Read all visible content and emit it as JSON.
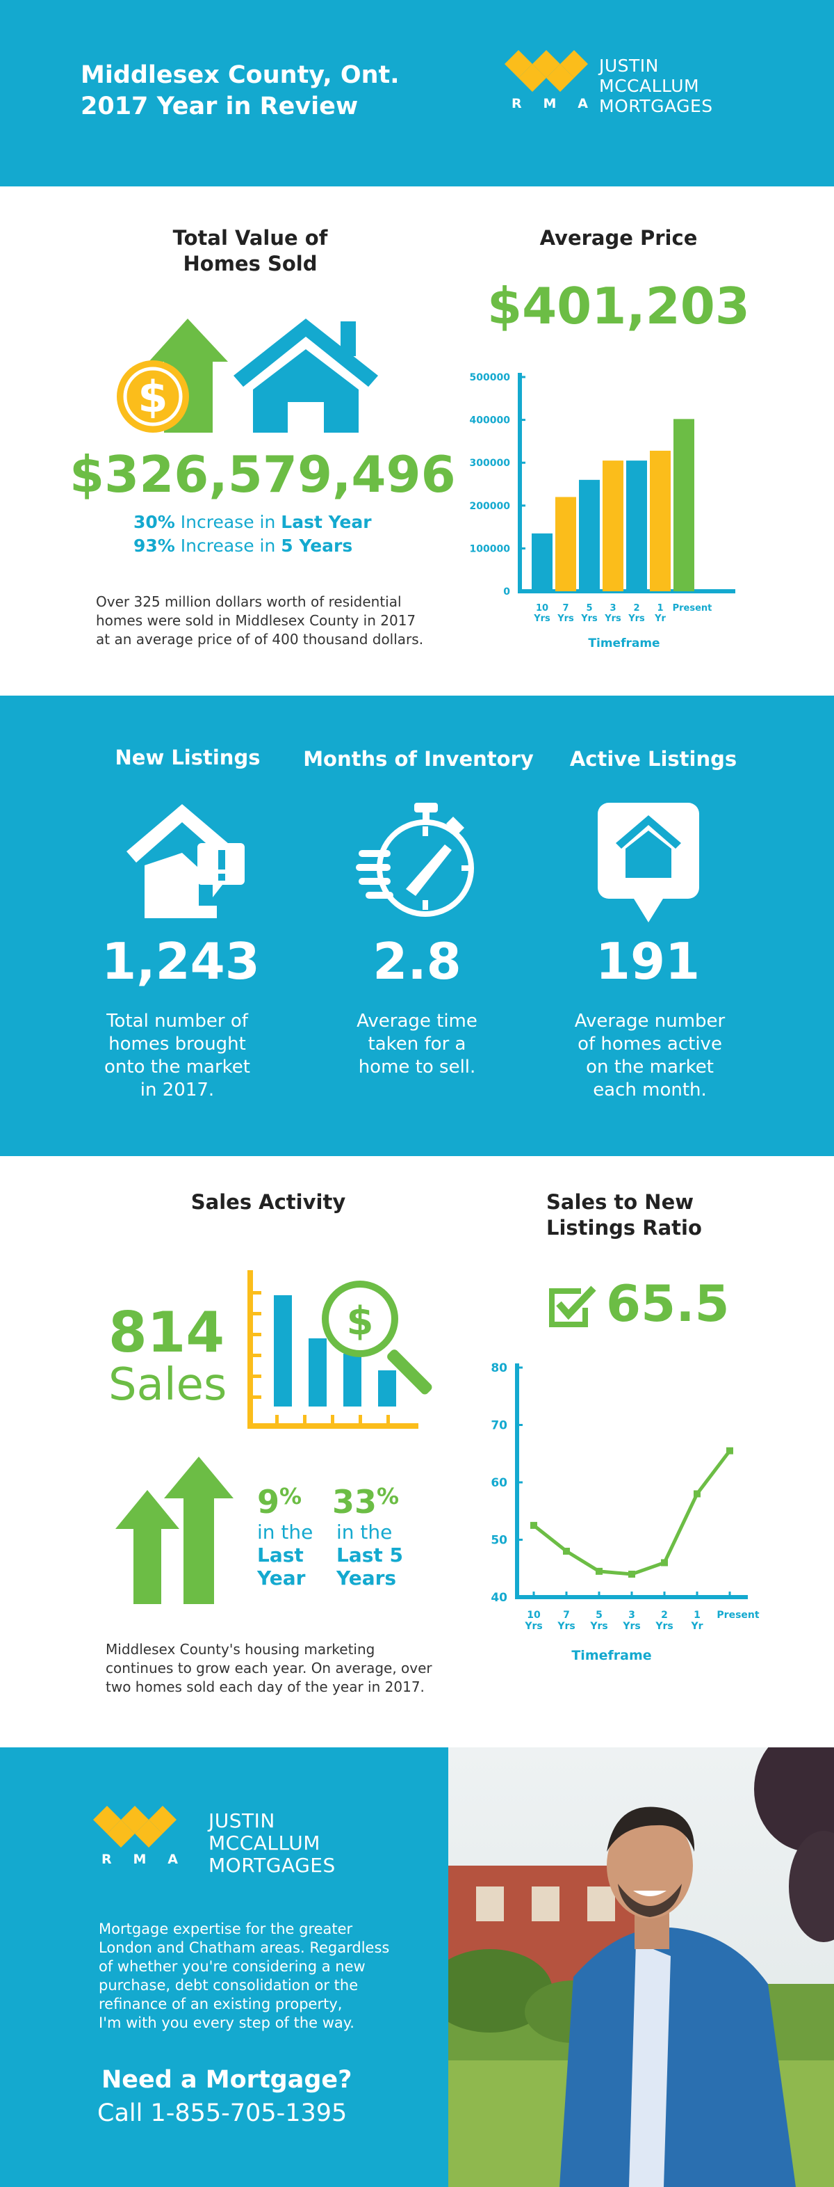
{
  "header": {
    "title_line1": "Middlesex County, Ont.",
    "title_line2": "2017 Year in Review",
    "logo_line1": "JUSTIN",
    "logo_line2": "MCCALLUM",
    "logo_line3": "MORTGAGES",
    "logo_letters": [
      "R",
      "M",
      "A"
    ]
  },
  "total_value": {
    "title_line1": "Total Value of",
    "title_line2": "Homes Sold",
    "amount": "$326,579,496",
    "inc1_pct": "30%",
    "inc1_mid": " Increase in ",
    "inc1_span": "Last Year",
    "inc2_pct": "93%",
    "inc2_mid": " Increase in ",
    "inc2_span": "5 Years",
    "desc_line1": "Over 325 million dollars worth of residential",
    "desc_line2": "homes were sold in Middlesex County in 2017",
    "desc_line3": "at an average price of of 400 thousand dollars."
  },
  "average_price": {
    "title": "Average Price",
    "amount": "$401,203"
  },
  "band": {
    "new_listings_title": "New Listings",
    "new_listings_value": "1,243",
    "new_listings_desc": [
      "Total number of",
      "homes brought",
      "onto the market",
      "in 2017."
    ],
    "months_title": "Months of Inventory",
    "months_value": "2.8",
    "months_desc": [
      "Average time",
      "taken for a",
      "home to sell."
    ],
    "active_title": "Active Listings",
    "active_value": "191",
    "active_desc": [
      "Average number",
      "of homes active",
      "on the market",
      "each month."
    ]
  },
  "sales": {
    "title": "Sales Activity",
    "count": "814",
    "word": "Sales",
    "pct1_num": "9",
    "pct1_sym": "%",
    "pct1_line1": "in the",
    "pct1_line2": "Last",
    "pct1_line3": "Year",
    "pct2_num": "33",
    "pct2_sym": "%",
    "pct2_line1": "in the",
    "pct2_line2": "Last 5",
    "pct2_line3": "Years",
    "desc_line1": "Middlesex County's housing marketing",
    "desc_line2": "continues to grow each year. On average, over",
    "desc_line3": "two homes sold each day of the year in 2017."
  },
  "ratio": {
    "title_line1": "Sales to New",
    "title_line2": "Listings Ratio",
    "value": "65.5"
  },
  "footer": {
    "logo_line1": "JUSTIN",
    "logo_line2": "MCCALLUM",
    "logo_line3": "MORTGAGES",
    "logo_letters": [
      "R",
      "M",
      "A"
    ],
    "para": [
      "Mortgage expertise for the greater",
      "London and Chatham areas. Regardless",
      "of whether you're considering a new",
      "purchase, debt consolidation or the",
      "refinance of an existing property,",
      "I'm with you every step of the way."
    ],
    "need": "Need a Mortgage?",
    "call": "Call 1-855-705-1395"
  },
  "colors": {
    "teal": "#14a9cf",
    "green": "#6cbd45",
    "yellow": "#fbbd1b"
  },
  "chart_data": [
    {
      "type": "bar",
      "categories": [
        [
          "10",
          "Yrs"
        ],
        [
          "7",
          "Yrs"
        ],
        [
          "5",
          "Yrs"
        ],
        [
          "3",
          "Yrs"
        ],
        [
          "2",
          "Yrs"
        ],
        [
          "1",
          "Yr"
        ],
        [
          "Present"
        ]
      ],
      "values": [
        135000,
        220000,
        260000,
        305000,
        305000,
        328000,
        402000
      ],
      "colors": [
        "#14a9cf",
        "#fbbd1b",
        "#14a9cf",
        "#fbbd1b",
        "#14a9cf",
        "#fbbd1b",
        "#6cbd45"
      ],
      "yticks": [
        "0",
        "100000",
        "200000",
        "300000",
        "400000",
        "500000"
      ],
      "ylim": [
        0,
        500000
      ],
      "xlabel": "Timeframe",
      "ylabel": ""
    },
    {
      "type": "line",
      "categories": [
        [
          "10",
          "Yrs"
        ],
        [
          "7",
          "Yrs"
        ],
        [
          "5",
          "Yrs"
        ],
        [
          "3",
          "Yrs"
        ],
        [
          "2",
          "Yrs"
        ],
        [
          "1",
          "Yr"
        ],
        [
          "Present"
        ]
      ],
      "values": [
        52.5,
        48,
        44.5,
        44,
        46,
        58,
        65.5
      ],
      "yticks": [
        "40",
        "50",
        "60",
        "70",
        "80"
      ],
      "ylim": [
        40,
        80
      ],
      "xlabel": "Timeframe",
      "ylabel": ""
    }
  ]
}
